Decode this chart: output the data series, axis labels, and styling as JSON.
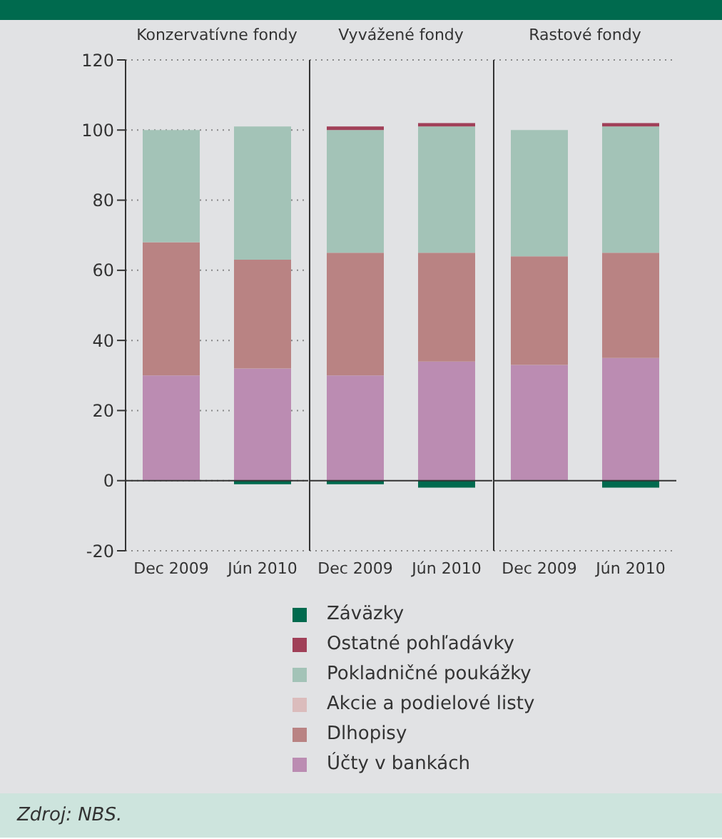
{
  "chart_data": [
    {
      "type": "bar",
      "stacked": true,
      "title": "Konzervatívne fondy",
      "categories": [
        "Dec 2009",
        "Jún 2010"
      ],
      "series": [
        {
          "name": "Účty v bankách",
          "color": "#bb8cb2",
          "values": [
            30,
            32
          ]
        },
        {
          "name": "Dlhopisy",
          "color": "#b98383",
          "values": [
            38,
            31
          ]
        },
        {
          "name": "Akcie  a podielové listy",
          "color": "#dbbcbc",
          "values": [
            0,
            0
          ]
        },
        {
          "name": "Pokladničné poukážky",
          "color": "#a3c3b7",
          "values": [
            32,
            38
          ]
        },
        {
          "name": "Ostatné pohľadávky",
          "color": "#a04058",
          "values": [
            0,
            0
          ]
        },
        {
          "name": "Záväzky",
          "color": "#006a4e",
          "values": [
            0,
            -1
          ]
        }
      ],
      "ylim": [
        -20,
        120
      ],
      "yticks": [
        -20,
        0,
        20,
        40,
        60,
        80,
        100,
        120
      ],
      "grid": "y",
      "legend": "bottom",
      "annotations": [
        "Zdroj: NBS."
      ]
    },
    {
      "type": "bar",
      "stacked": true,
      "title": "Vyvážené fondy",
      "categories": [
        "Dec 2009",
        "Jún 2010"
      ],
      "series": [
        {
          "color": "#bb8cb2",
          "values": [
            30,
            34
          ]
        },
        {
          "color": "#b98383",
          "values": [
            35,
            31
          ]
        },
        {
          "color": "#dbbcbc",
          "values": [
            0,
            0
          ]
        },
        {
          "color": "#a3c3b7",
          "values": [
            35,
            36
          ]
        },
        {
          "color": "#a04058",
          "values": [
            1,
            1
          ]
        },
        {
          "color": "#006a4e",
          "values": [
            -1,
            -2
          ]
        }
      ],
      "ylim": [
        -20,
        120
      ],
      "yticks": [
        -20,
        0,
        20,
        40,
        60,
        80,
        100,
        120
      ],
      "grid": "y",
      "tick_labels": "x"
    },
    {
      "type": "bar",
      "stacked": true,
      "title": "Rastové fondy",
      "categories": [
        "Dec 2009",
        "Jún 2010"
      ],
      "series": [
        {
          "color": "#bb8cb2",
          "values": [
            33,
            35
          ]
        },
        {
          "color": "#b98383",
          "values": [
            31,
            30
          ]
        },
        {
          "color": "#dbbcbc",
          "values": [
            0,
            0
          ]
        },
        {
          "color": "#a3c3b7",
          "values": [
            36,
            36
          ]
        },
        {
          "color": "#a04058",
          "values": [
            0,
            1
          ]
        },
        {
          "color": "#006a4e",
          "values": [
            0,
            -2
          ]
        }
      ],
      "ylim": [
        -20,
        120
      ],
      "yticks": [
        -20,
        0,
        20,
        40,
        60,
        80,
        100,
        120
      ],
      "grid": "y",
      "tick_labels": "x"
    }
  ]
}
